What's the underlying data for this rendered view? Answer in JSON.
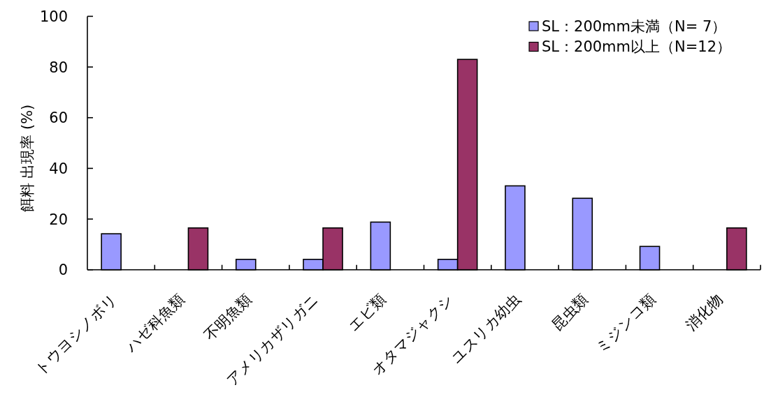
{
  "chart_data": {
    "type": "bar",
    "ylabel": "餌料 出現率 (%)",
    "categories": [
      "トウヨシノボリ",
      "ハゼ科魚類",
      "不明魚類",
      "アメリカザリガニ",
      "エビ類",
      "オタマジャクシ",
      "ユスリカ幼虫",
      "昆虫類",
      "ミジンコ類",
      "消化物"
    ],
    "series": [
      {
        "name": "SL：200mm未満（N= 7）",
        "color": "#9999ff",
        "values": [
          14.2,
          null,
          4.1,
          4.1,
          18.8,
          4.1,
          33.1,
          28.2,
          9.2,
          null
        ]
      },
      {
        "name": "SL：200mm以上（N=12）",
        "color": "#993366",
        "values": [
          null,
          16.5,
          null,
          16.5,
          null,
          83,
          null,
          null,
          null,
          16.5
        ]
      }
    ],
    "ylim": [
      0,
      100
    ],
    "yticks": [
      0,
      20,
      40,
      60,
      80,
      100
    ],
    "legend": "top right"
  }
}
